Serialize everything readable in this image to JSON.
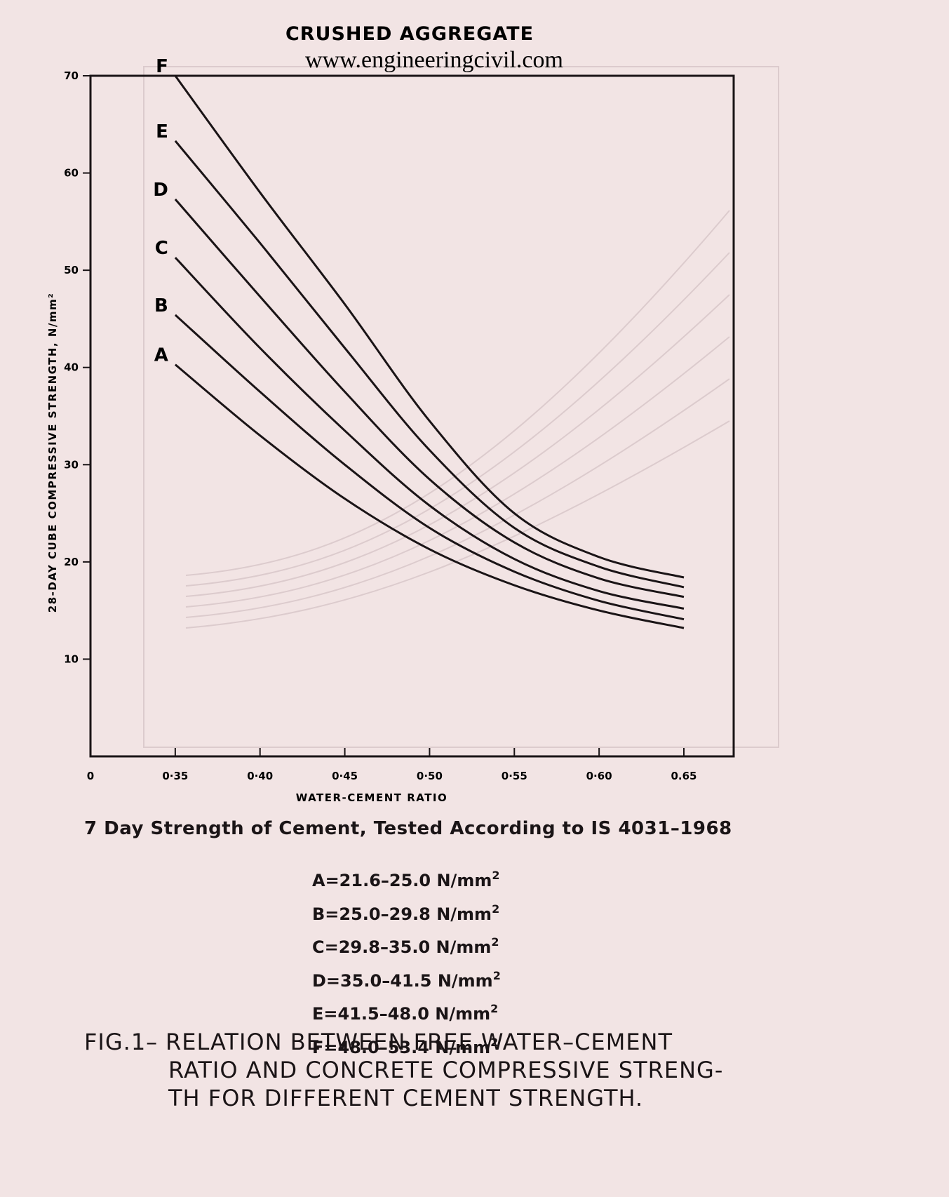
{
  "header": {
    "title": "CRUSHED AGGREGATE",
    "watermark": "www.engineeringcivil.com"
  },
  "chart_data": {
    "type": "line",
    "xlabel": "WATER-CEMENT RATIO",
    "ylabel": "28-DAY CUBE COMPRESSIVE STRENGTH, N/mm²",
    "xlim": [
      0.3,
      0.65
    ],
    "ylim": [
      0,
      70
    ],
    "x_ticks": [
      {
        "value": 0.3,
        "label": "0"
      },
      {
        "value": 0.35,
        "label": "0·35"
      },
      {
        "value": 0.4,
        "label": "0·40"
      },
      {
        "value": 0.45,
        "label": "0·45"
      },
      {
        "value": 0.5,
        "label": "0·50"
      },
      {
        "value": 0.55,
        "label": "0·55"
      },
      {
        "value": 0.6,
        "label": "0·60"
      },
      {
        "value": 0.65,
        "label": "0.65"
      }
    ],
    "y_ticks": [
      {
        "value": 10,
        "label": "10"
      },
      {
        "value": 20,
        "label": "20"
      },
      {
        "value": 30,
        "label": "30"
      },
      {
        "value": 40,
        "label": "40"
      },
      {
        "value": 50,
        "label": "50"
      },
      {
        "value": 60,
        "label": "60"
      },
      {
        "value": 70,
        "label": "70"
      }
    ],
    "grid": false,
    "x": [
      0.35,
      0.4,
      0.45,
      0.5,
      0.55,
      0.6,
      0.65
    ],
    "series": [
      {
        "name": "A",
        "values": [
          40.3,
          33.0,
          26.5,
          21.3,
          17.6,
          15.0,
          13.2
        ]
      },
      {
        "name": "B",
        "values": [
          45.4,
          37.5,
          30.0,
          23.5,
          19.0,
          16.0,
          14.1
        ]
      },
      {
        "name": "C",
        "values": [
          51.3,
          42.0,
          33.5,
          25.8,
          20.3,
          17.0,
          15.2
        ]
      },
      {
        "name": "D",
        "values": [
          57.3,
          47.3,
          37.5,
          28.5,
          22.0,
          18.3,
          16.4
        ]
      },
      {
        "name": "E",
        "values": [
          63.3,
          52.8,
          42.0,
          31.5,
          23.5,
          19.5,
          17.4
        ]
      },
      {
        "name": "F",
        "values": [
          70.0,
          58.0,
          46.5,
          34.5,
          25.0,
          20.5,
          18.4
        ]
      }
    ]
  },
  "subtitle": "7 Day Strength of Cement, Tested According to IS 4031–1968",
  "legend": [
    {
      "label": "A=21.6–25.0 N/mm",
      "sup": "2"
    },
    {
      "label": "B=25.0–29.8 N/mm",
      "sup": "2"
    },
    {
      "label": "C=29.8–35.0 N/mm",
      "sup": "2"
    },
    {
      "label": "D=35.0–41.5 N/mm",
      "sup": "2"
    },
    {
      "label": "E=41.5–48.0 N/mm",
      "sup": "2"
    },
    {
      "label": "F=48.0–53.4 N/mm",
      "sup": "2"
    }
  ],
  "caption": {
    "number": "FIG.1–",
    "line1": "RELATION BETWEEN FREE WATER–CEMENT",
    "line2": "RATIO AND CONCRETE COMPRESSIVE STRENG-",
    "line3": "TH FOR DIFFERENT CEMENT STRENGTH."
  },
  "colors": {
    "ink": "#1a1416",
    "paper": "#f2e4e4",
    "ghost": "#dccbcd"
  }
}
